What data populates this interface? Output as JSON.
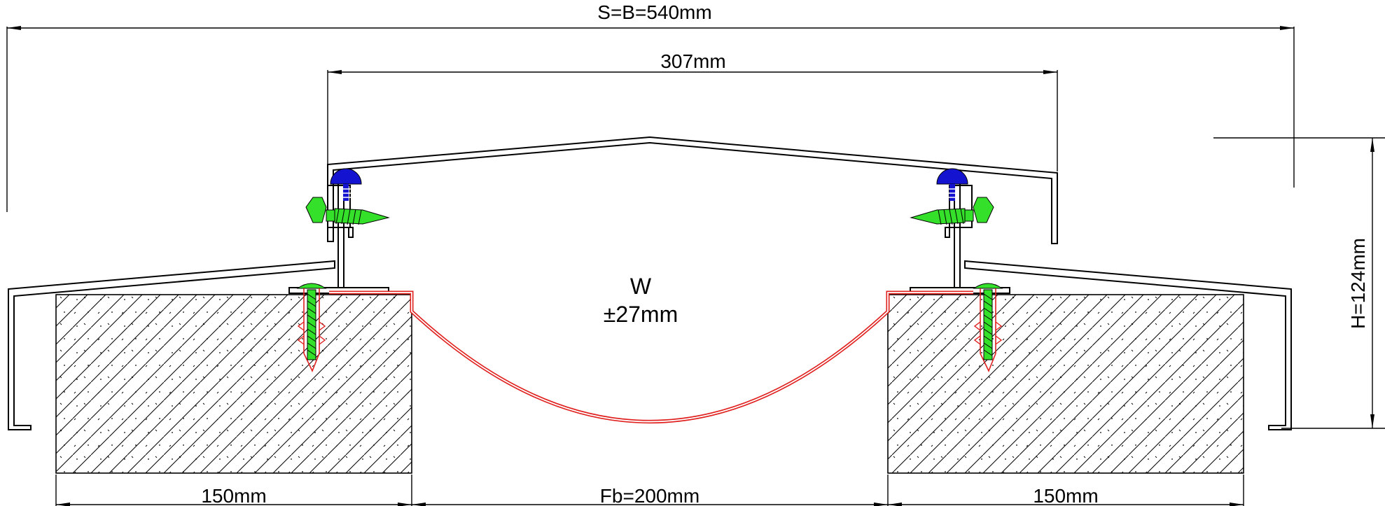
{
  "dimensions": {
    "overall_width": "S=B=540mm",
    "cover_width": "307mm",
    "height": "H=124mm",
    "left_substrate": "150mm",
    "gap": "Fb=200mm",
    "right_substrate": "150mm"
  },
  "movement": {
    "symbol": "W",
    "value": "±27mm"
  },
  "colors": {
    "membrane": "#e0201e",
    "screw": "#35e02a",
    "clip": "#1414d0",
    "outline": "#000000"
  }
}
